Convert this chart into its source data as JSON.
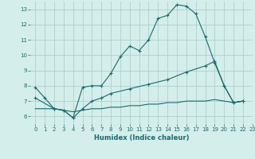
{
  "xlabel": "Humidex (Indice chaleur)",
  "bg_color": "#d4eeeb",
  "grid_color": "#b0d0cc",
  "line_color": "#1a6b6b",
  "xlim": [
    -0.5,
    23
  ],
  "ylim": [
    5.5,
    13.5
  ],
  "xticks": [
    0,
    1,
    2,
    3,
    4,
    5,
    6,
    7,
    8,
    9,
    10,
    11,
    12,
    13,
    14,
    15,
    16,
    17,
    18,
    19,
    20,
    21,
    22,
    23
  ],
  "yticks": [
    6,
    7,
    8,
    9,
    10,
    11,
    12,
    13
  ],
  "series1_x": [
    0,
    1,
    2,
    3,
    4,
    5,
    6,
    7,
    8,
    9,
    10,
    11,
    12,
    13,
    14,
    15,
    16,
    17,
    18,
    19,
    20,
    21,
    22
  ],
  "series1_y": [
    7.9,
    7.2,
    6.5,
    6.4,
    5.9,
    7.9,
    8.0,
    8.0,
    8.8,
    9.9,
    10.6,
    10.3,
    11.0,
    12.4,
    12.6,
    13.3,
    13.2,
    12.7,
    11.2,
    9.5,
    8.0,
    6.9,
    7.0
  ],
  "series2_x": [
    0,
    2,
    3,
    4,
    5,
    6,
    7,
    8,
    10,
    12,
    14,
    16,
    18,
    19,
    20,
    21,
    22
  ],
  "series2_y": [
    7.2,
    6.5,
    6.4,
    5.9,
    6.5,
    7.0,
    7.2,
    7.5,
    7.8,
    8.1,
    8.4,
    8.9,
    9.3,
    9.6,
    8.0,
    6.9,
    7.0
  ],
  "series3_x": [
    0,
    2,
    3,
    4,
    5,
    6,
    7,
    8,
    9,
    10,
    11,
    12,
    13,
    14,
    15,
    16,
    17,
    18,
    19,
    20,
    21,
    22
  ],
  "series3_y": [
    6.5,
    6.5,
    6.4,
    6.3,
    6.4,
    6.5,
    6.5,
    6.6,
    6.6,
    6.7,
    6.7,
    6.8,
    6.8,
    6.9,
    6.9,
    7.0,
    7.0,
    7.0,
    7.1,
    7.0,
    6.9,
    7.0
  ]
}
